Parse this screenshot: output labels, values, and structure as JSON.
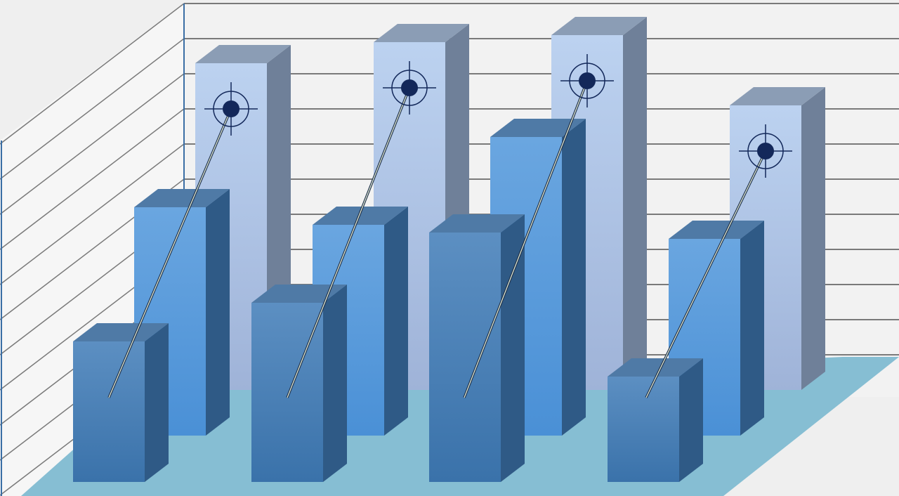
{
  "chart_data": {
    "type": "bar",
    "style": "3d-grouped-depth",
    "title": "",
    "xlabel": "",
    "ylabel": "",
    "categories": [
      "",
      "",
      "",
      ""
    ],
    "grid": true,
    "ylim": [
      0,
      11
    ],
    "series": [
      {
        "values": [
          9.3,
          9.9,
          10.1,
          8.1
        ],
        "color": "#b4c9e8",
        "markers": "target"
      },
      {
        "values": [
          6.5,
          6.0,
          8.5,
          5.6
        ],
        "color": "#5b9bd9"
      },
      {
        "values": [
          4.0,
          5.1,
          7.1,
          3.0
        ],
        "color": "#4a7fb5"
      }
    ],
    "colors": {
      "background": "#efefef",
      "floor": "#86bed3",
      "grid": "#7a7a7a",
      "axis": "#3a6ea5",
      "target": "#13285a"
    }
  }
}
